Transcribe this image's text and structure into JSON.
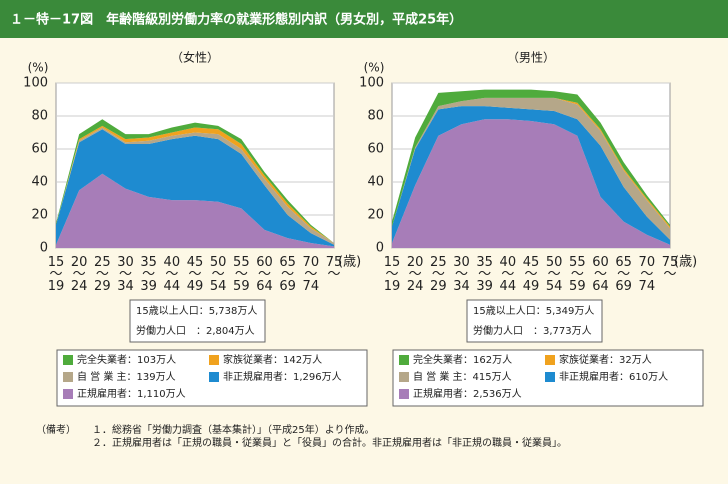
{
  "header": {
    "title": "１－特－17図　年齢階級別労働力率の就業形態別内訳（男女別，平成25年）"
  },
  "chart_data": [
    {
      "type": "area",
      "stacked": true,
      "title": "（女性）",
      "ylabel": "(%)",
      "xlabel": "(歳)",
      "categories": [
        "15～19",
        "20～24",
        "25～29",
        "30～34",
        "35～39",
        "40～44",
        "45～49",
        "50～54",
        "55～59",
        "60～64",
        "65～69",
        "70～74",
        "75～"
      ],
      "ylim": [
        0,
        100
      ],
      "yticks": [
        0,
        20,
        40,
        60,
        80,
        100
      ],
      "grid": true,
      "info": [
        "15歳以上人口：5,738万人",
        "労働力人口　：2,804万人"
      ],
      "series": [
        {
          "name": "正規雇用者：1,110万人",
          "color": "#a77db8",
          "values": [
            2,
            35,
            45,
            36,
            31,
            29,
            29,
            28,
            24,
            11,
            6,
            3,
            1
          ]
        },
        {
          "name": "非正規雇用者：1,296万人",
          "color": "#1e8bd0",
          "values": [
            12,
            29,
            27,
            27,
            32,
            37,
            39,
            38,
            33,
            27,
            14,
            6,
            1
          ]
        },
        {
          "name": "自 営 業 主：139万人",
          "color": "#b5a789",
          "values": [
            0,
            1,
            1,
            1,
            2,
            2,
            2,
            3,
            3,
            4,
            5,
            3,
            1
          ]
        },
        {
          "name": "家族従業者：142万人",
          "color": "#f0a21e",
          "values": [
            0,
            1,
            1,
            2,
            2,
            2,
            3,
            3,
            3,
            2,
            2,
            1,
            0
          ]
        },
        {
          "name": "完全失業者：103万人",
          "color": "#4fab3c",
          "values": [
            1,
            3,
            4,
            3,
            2,
            3,
            3,
            2,
            3,
            2,
            2,
            1,
            0
          ]
        }
      ]
    },
    {
      "type": "area",
      "stacked": true,
      "title": "（男性）",
      "ylabel": "(%)",
      "xlabel": "(歳)",
      "categories": [
        "15～19",
        "20～24",
        "25～29",
        "30～34",
        "35～39",
        "40～44",
        "45～49",
        "50～54",
        "55～59",
        "60～64",
        "65～69",
        "70～74",
        "75～"
      ],
      "ylim": [
        0,
        100
      ],
      "yticks": [
        0,
        20,
        40,
        60,
        80,
        100
      ],
      "grid": true,
      "info": [
        "15歳以上人口：5,349万人",
        "労働力人口　：3,773万人"
      ],
      "series": [
        {
          "name": "正規雇用者：2,536万人",
          "color": "#a77db8",
          "values": [
            3,
            38,
            68,
            75,
            78,
            78,
            77,
            75,
            68,
            31,
            16,
            8,
            2
          ]
        },
        {
          "name": "非正規雇用者：610万人",
          "color": "#1e8bd0",
          "values": [
            10,
            22,
            16,
            11,
            8,
            7,
            7,
            8,
            10,
            31,
            21,
            11,
            3
          ]
        },
        {
          "name": "自 営 業 主：415万人",
          "color": "#b5a789",
          "values": [
            0,
            1,
            2,
            3,
            5,
            6,
            7,
            8,
            9,
            9,
            10,
            10,
            7
          ]
        },
        {
          "name": "家族従業者：32万人",
          "color": "#f0a21e",
          "values": [
            0,
            0,
            0,
            0,
            0,
            0,
            0,
            0,
            1,
            1,
            1,
            1,
            1
          ]
        },
        {
          "name": "完全失業者：162万人",
          "color": "#4fab3c",
          "values": [
            3,
            6,
            8,
            6,
            5,
            5,
            5,
            4,
            5,
            4,
            4,
            2,
            1
          ]
        }
      ]
    }
  ],
  "notes": {
    "label": "（備考）",
    "items": [
      "１．総務省「労働力調査（基本集計）」（平成25年）より作成。",
      "２．正規雇用者は「正規の職員・従業員」と「役員」の合計。非正規雇用者は「非正規の職員・従業員」。"
    ]
  }
}
